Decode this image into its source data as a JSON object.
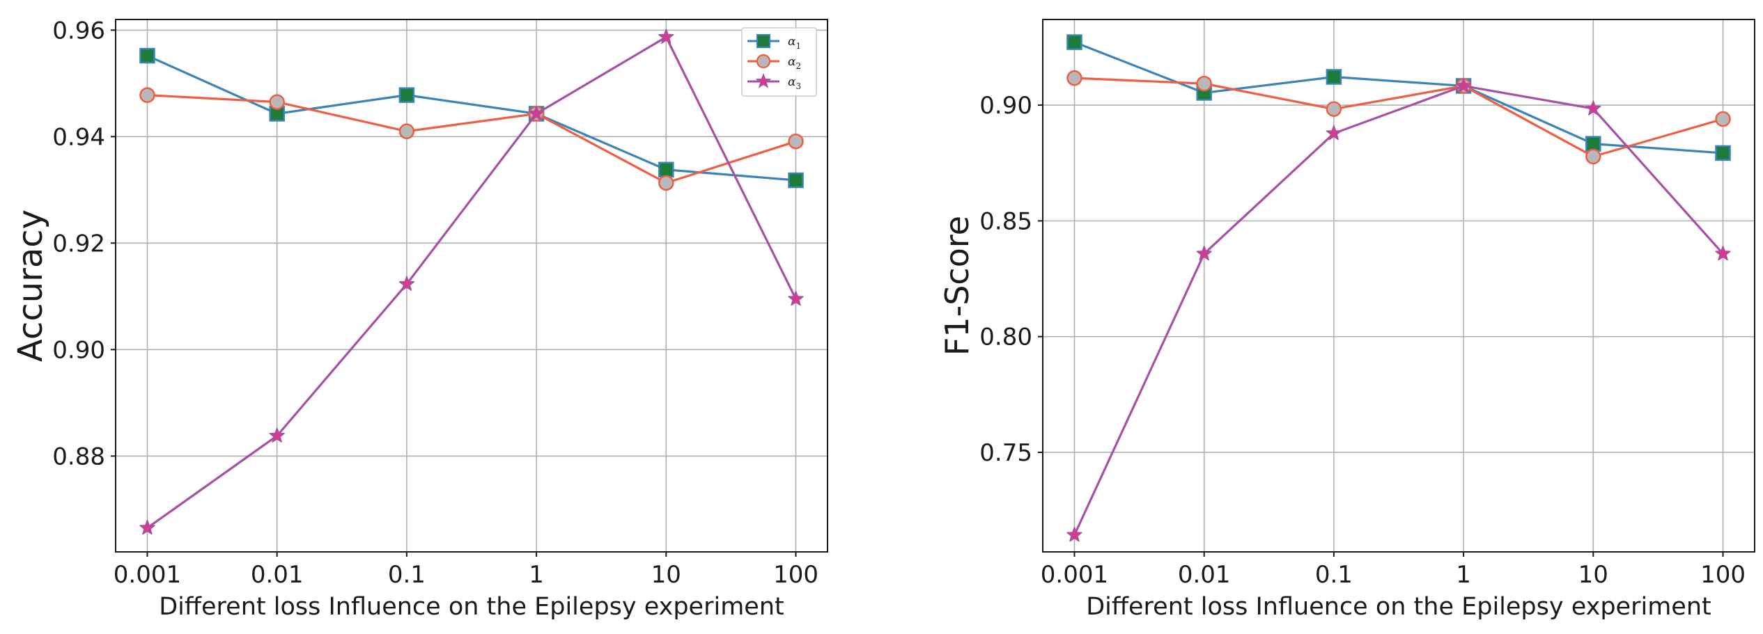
{
  "chart_data": [
    {
      "type": "line",
      "categories": [
        "0.001",
        "0.01",
        "0.1",
        "1",
        "10",
        "100"
      ],
      "ylabel": "Accuracy",
      "xlabel": "Different loss Influence on the Epilepsy experiment",
      "yticks": [
        "0.88",
        "0.90",
        "0.92",
        "0.94",
        "0.96"
      ],
      "ylim": [
        0.862,
        0.962
      ],
      "grid": true,
      "legend": "top-right",
      "series": [
        {
          "name": "α1",
          "marker": "square",
          "line_color": "#3a84b8",
          "face_color": "#1e7c3a",
          "edge_color": "#3a84b8",
          "values": [
            0.9552,
            0.9443,
            0.9478,
            0.9443,
            0.9338,
            0.9318
          ]
        },
        {
          "name": "α2",
          "marker": "circle",
          "line_color": "#ee5e43",
          "face_color": "#b9b9b9",
          "edge_color": "#ee5e43",
          "values": [
            0.9478,
            0.9465,
            0.941,
            0.9443,
            0.9313,
            0.9391
          ]
        },
        {
          "name": "α3",
          "marker": "star",
          "line_color": "#a751a5",
          "face_color": "#d63a8c",
          "edge_color": "#a751a5",
          "values": [
            0.8665,
            0.8838,
            0.9123,
            0.9443,
            0.9587,
            0.9095
          ]
        }
      ]
    },
    {
      "type": "line",
      "categories": [
        "0.001",
        "0.01",
        "0.1",
        "1",
        "10",
        "100"
      ],
      "ylabel": "F1-Score",
      "xlabel": "Different loss Influence on the Epilepsy experiment",
      "yticks": [
        "0.75",
        "0.80",
        "0.85",
        "0.90"
      ],
      "ylim": [
        0.707,
        0.937
      ],
      "grid": true,
      "series": [
        {
          "name": "α1",
          "marker": "square",
          "line_color": "#3a84b8",
          "face_color": "#1e7c3a",
          "edge_color": "#3a84b8",
          "values": [
            0.9272,
            0.9053,
            0.9122,
            0.9083,
            0.8833,
            0.8793
          ]
        },
        {
          "name": "α2",
          "marker": "circle",
          "line_color": "#ee5e43",
          "face_color": "#b9b9b9",
          "edge_color": "#ee5e43",
          "values": [
            0.9117,
            0.9093,
            0.8983,
            0.9083,
            0.8778,
            0.894
          ]
        },
        {
          "name": "α3",
          "marker": "star",
          "line_color": "#a751a5",
          "face_color": "#d63a8c",
          "edge_color": "#a751a5",
          "values": [
            0.7143,
            0.8358,
            0.8878,
            0.9083,
            0.8985,
            0.8358
          ]
        }
      ]
    }
  ]
}
